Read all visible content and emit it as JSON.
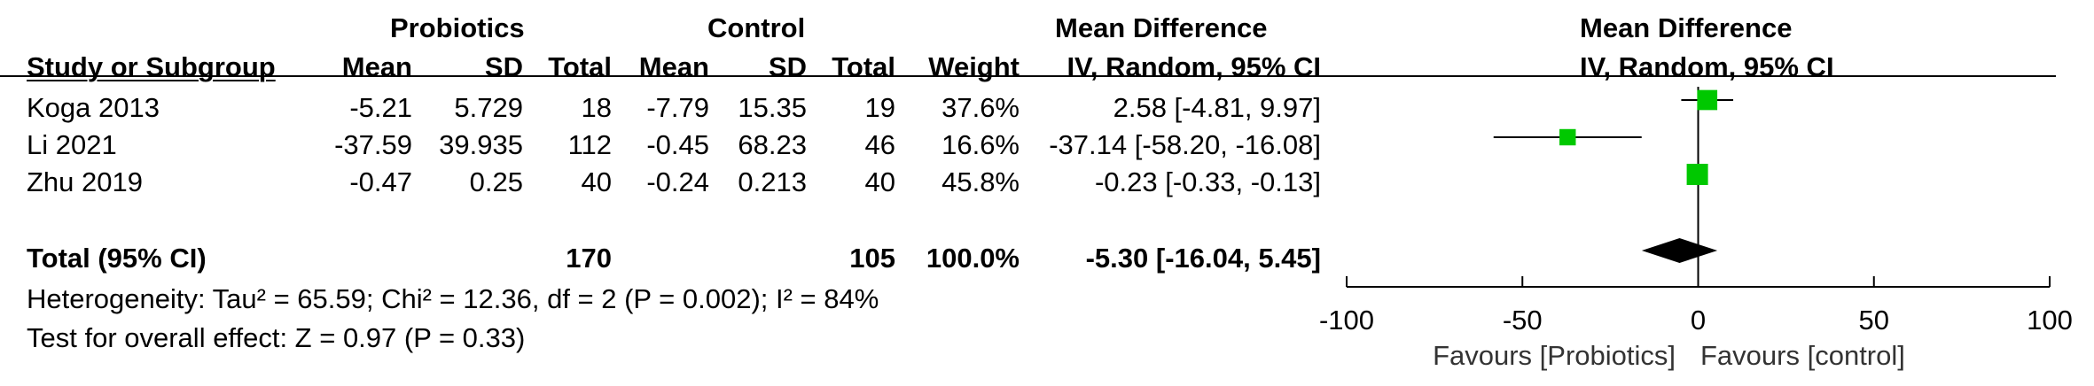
{
  "header": {
    "group1": "Probiotics",
    "group2": "Control",
    "effect_title": "Mean Difference",
    "plot_title": "Mean Difference",
    "columns": {
      "study": "Study or Subgroup",
      "mean1": "Mean",
      "sd1": "SD",
      "total1": "Total",
      "mean2": "Mean",
      "sd2": "SD",
      "total2": "Total",
      "weight": "Weight",
      "effect": "IV, Random, 95% CI",
      "plot_effect": "IV, Random, 95% CI"
    }
  },
  "rows": [
    {
      "study": "Koga 2013",
      "mean1": "-5.21",
      "sd1": "5.729",
      "total1": "18",
      "mean2": "-7.79",
      "sd2": "15.35",
      "total2": "19",
      "weight": "37.6%",
      "ci": "2.58 [-4.81, 9.97]"
    },
    {
      "study": "Li 2021",
      "mean1": "-37.59",
      "sd1": "39.935",
      "total1": "112",
      "mean2": "-0.45",
      "sd2": "68.23",
      "total2": "46",
      "weight": "16.6%",
      "ci": "-37.14 [-58.20, -16.08]"
    },
    {
      "study": "Zhu 2019",
      "mean1": "-0.47",
      "sd1": "0.25",
      "total1": "40",
      "mean2": "-0.24",
      "sd2": "0.213",
      "total2": "40",
      "weight": "45.8%",
      "ci": "-0.23 [-0.33, -0.13]"
    }
  ],
  "total": {
    "label": "Total (95% CI)",
    "total1": "170",
    "total2": "105",
    "weight": "100.0%",
    "ci": "-5.30 [-16.04, 5.45]"
  },
  "heterogeneity": "Heterogeneity: Tau² = 65.59; Chi² = 12.36, df = 2 (P = 0.002); I² = 84%",
  "overall_effect": "Test for overall effect: Z = 0.97 (P = 0.33)",
  "favours_left": "Favours [Probiotics]",
  "favours_right": "Favours [control]",
  "colors": {
    "marker": "#00c800",
    "diamond": "#000000",
    "line": "#000000"
  },
  "chart_data": {
    "type": "forest",
    "x_range": [
      -100,
      100
    ],
    "ticks": [
      -100,
      -50,
      0,
      50,
      100
    ],
    "tick_labels": [
      "-100",
      "-50",
      "0",
      "50",
      "100"
    ],
    "studies": [
      {
        "name": "Koga 2013",
        "estimate": 2.58,
        "lower": -4.81,
        "upper": 9.97,
        "weight": 37.6
      },
      {
        "name": "Li 2021",
        "estimate": -37.14,
        "lower": -58.2,
        "upper": -16.08,
        "weight": 16.6
      },
      {
        "name": "Zhu 2019",
        "estimate": -0.23,
        "lower": -0.33,
        "upper": -0.13,
        "weight": 45.8
      }
    ],
    "pooled": {
      "estimate": -5.3,
      "lower": -16.04,
      "upper": 5.45
    }
  }
}
